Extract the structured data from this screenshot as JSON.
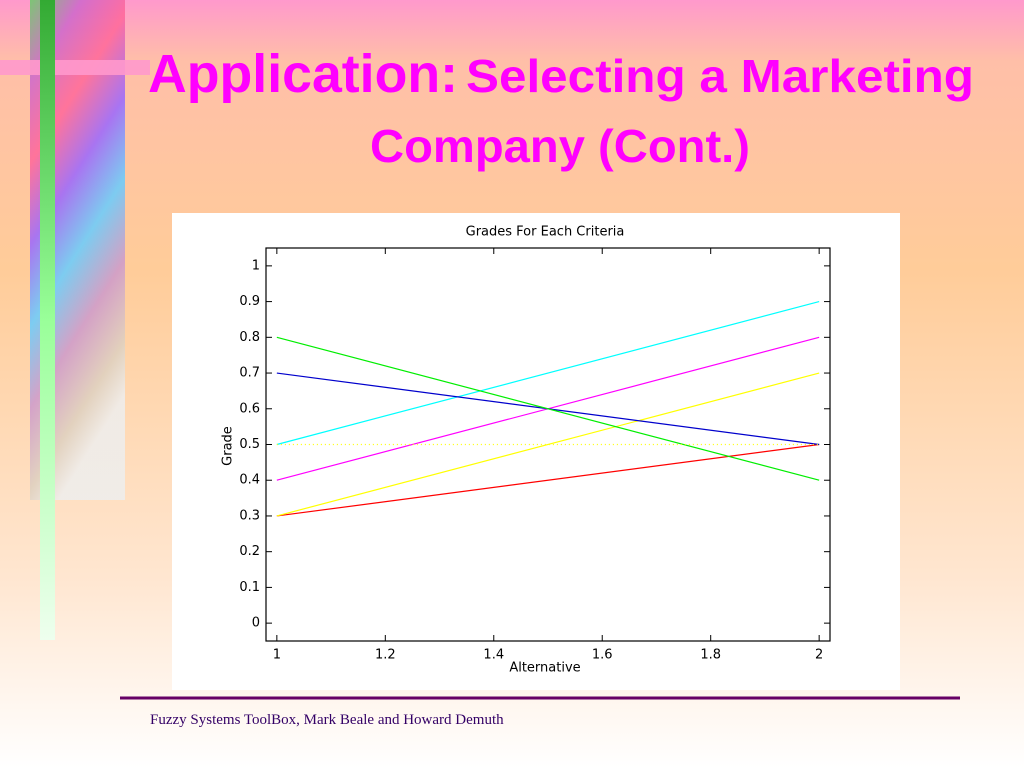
{
  "slide": {
    "title": [
      "Application:",
      "Selecting a Marketing",
      "Company (Cont.)"
    ],
    "footer": "Fuzzy  Systems ToolBox, Mark Beale and Howard Demuth"
  },
  "chart_data": {
    "type": "line",
    "title": "Grades For Each Criteria",
    "x_label": "Alternative",
    "y_label": "Grade",
    "x": [
      1,
      2
    ],
    "series": [
      {
        "color": "#ff0000",
        "values": [
          0.3,
          0.5
        ]
      },
      {
        "color": "#ffff00",
        "values": [
          0.3,
          0.7
        ]
      },
      {
        "color": "#ff00ff",
        "values": [
          0.4,
          0.8
        ]
      },
      {
        "color": "#00ffff",
        "values": [
          0.5,
          0.9
        ]
      },
      {
        "color": "#0000cc",
        "values": [
          0.7,
          0.5
        ]
      },
      {
        "color": "#00ee00",
        "values": [
          0.8,
          0.4
        ]
      },
      {
        "color": "#ffff00",
        "values": [
          0.5,
          0.5
        ],
        "style": "dotted"
      }
    ],
    "xlim": [
      0.98,
      2.02
    ],
    "ylim": [
      -0.05,
      1.05
    ],
    "xticks": [
      1,
      1.2,
      1.4,
      1.6,
      1.8,
      2
    ],
    "yticks": [
      0,
      0.1,
      0.2,
      0.3,
      0.4,
      0.5,
      0.6,
      0.7,
      0.8,
      0.9,
      1
    ],
    "grid": false
  }
}
